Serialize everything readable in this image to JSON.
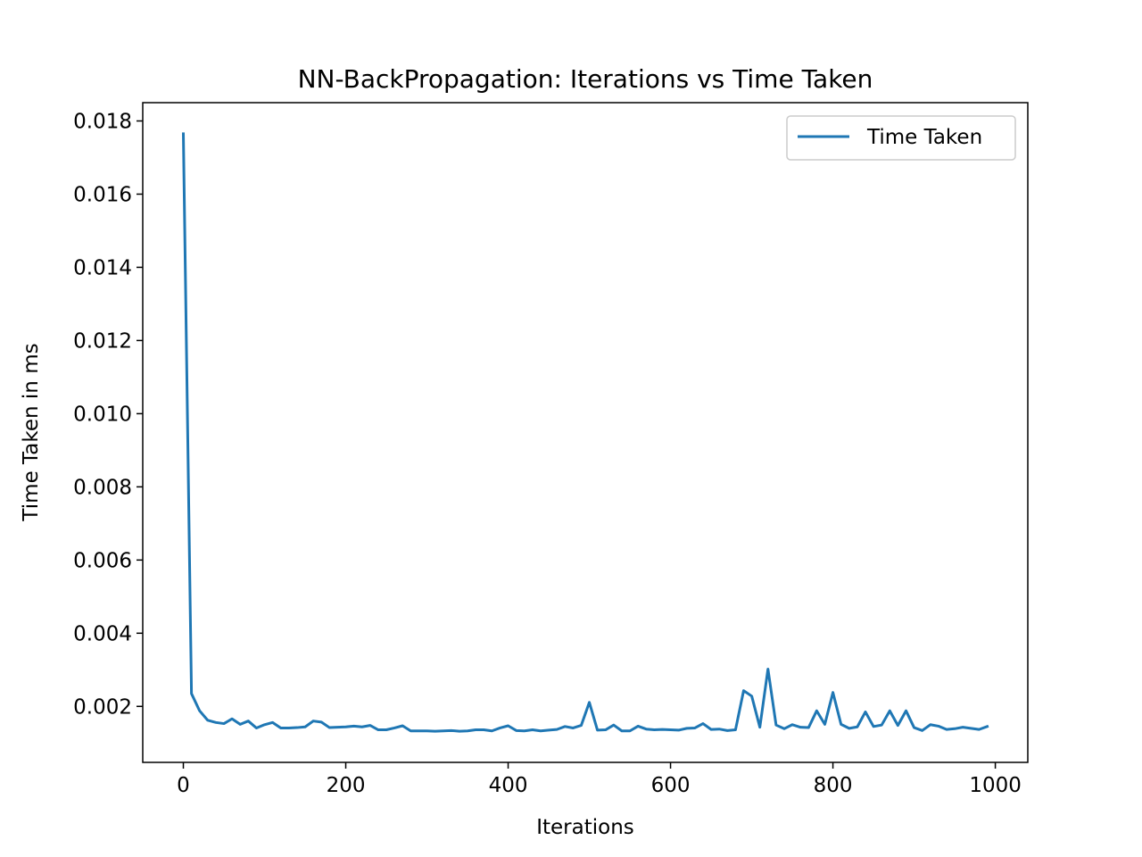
{
  "chart_data": {
    "type": "line",
    "title": "NN-BackPropagation: Iterations vs Time Taken",
    "xlabel": "Iterations",
    "ylabel": "Time Taken in ms",
    "xlim": [
      -50,
      1040
    ],
    "ylim": [
      0.00047,
      0.0185
    ],
    "xticks": [
      0,
      200,
      400,
      600,
      800,
      1000
    ],
    "xtick_labels": [
      "0",
      "200",
      "400",
      "600",
      "800",
      "1000"
    ],
    "yticks": [
      0.002,
      0.004,
      0.006,
      0.008,
      0.01,
      0.012,
      0.014,
      0.016,
      0.018
    ],
    "ytick_labels": [
      "0.002",
      "0.004",
      "0.006",
      "0.008",
      "0.010",
      "0.012",
      "0.014",
      "0.016",
      "0.018"
    ],
    "grid": false,
    "legend_position": "top-right",
    "series": [
      {
        "name": "Time Taken",
        "color": "#1f77b4",
        "x": [
          0,
          10,
          20,
          30,
          40,
          50,
          60,
          70,
          80,
          90,
          100,
          110,
          120,
          130,
          140,
          150,
          160,
          170,
          180,
          190,
          200,
          210,
          220,
          230,
          240,
          250,
          260,
          270,
          280,
          290,
          300,
          310,
          320,
          330,
          340,
          350,
          360,
          370,
          380,
          390,
          400,
          410,
          420,
          430,
          440,
          450,
          460,
          470,
          480,
          490,
          500,
          510,
          520,
          530,
          540,
          550,
          560,
          570,
          580,
          590,
          600,
          610,
          620,
          630,
          640,
          650,
          660,
          670,
          680,
          690,
          700,
          710,
          720,
          730,
          740,
          750,
          760,
          770,
          780,
          790,
          800,
          810,
          820,
          830,
          840,
          850,
          860,
          870,
          880,
          890,
          900,
          910,
          920,
          930,
          940,
          950,
          960,
          970,
          980,
          990
        ],
        "values": [
          0.01765,
          0.00235,
          0.00188,
          0.00162,
          0.00156,
          0.00153,
          0.00166,
          0.00151,
          0.0016,
          0.00141,
          0.0015,
          0.00156,
          0.00141,
          0.00141,
          0.00142,
          0.00144,
          0.0016,
          0.00157,
          0.00142,
          0.00143,
          0.00144,
          0.00146,
          0.00144,
          0.00148,
          0.00136,
          0.00136,
          0.00141,
          0.00147,
          0.00133,
          0.00133,
          0.00133,
          0.00132,
          0.00133,
          0.00134,
          0.00132,
          0.00133,
          0.00136,
          0.00136,
          0.00133,
          0.00141,
          0.00147,
          0.00134,
          0.00133,
          0.00136,
          0.00133,
          0.00135,
          0.00137,
          0.00145,
          0.00141,
          0.00148,
          0.00211,
          0.00135,
          0.00136,
          0.00149,
          0.00133,
          0.00133,
          0.00146,
          0.00138,
          0.00136,
          0.00137,
          0.00136,
          0.00135,
          0.0014,
          0.00141,
          0.00153,
          0.00137,
          0.00138,
          0.00134,
          0.00136,
          0.00243,
          0.00228,
          0.00143,
          0.00302,
          0.00149,
          0.00139,
          0.0015,
          0.00143,
          0.00142,
          0.00188,
          0.00151,
          0.00238,
          0.00151,
          0.0014,
          0.00144,
          0.00185,
          0.00145,
          0.00149,
          0.00188,
          0.00148,
          0.00188,
          0.00142,
          0.00134,
          0.0015,
          0.00146,
          0.00137,
          0.00139,
          0.00143,
          0.0014,
          0.00137,
          0.00145
        ]
      }
    ]
  }
}
